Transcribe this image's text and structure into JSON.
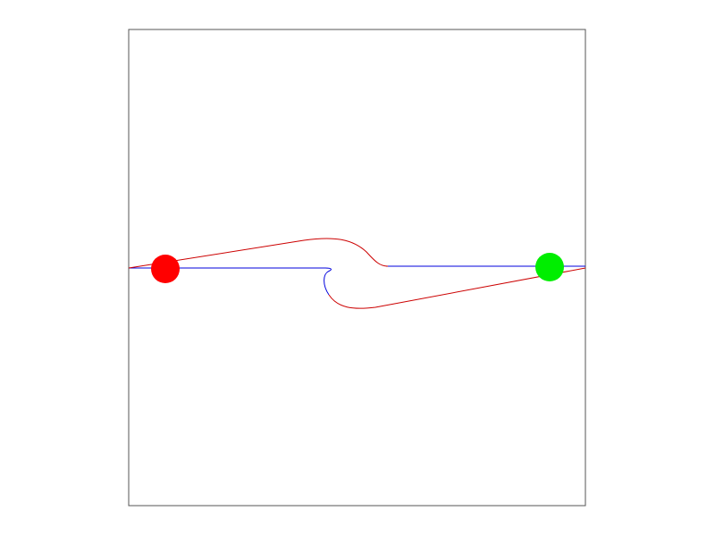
{
  "diagram": {
    "colors": {
      "frame": "#555555",
      "background": "#ffffff",
      "red_path": "#cc0000",
      "blue_path": "#0000dd",
      "start_marker": "#ff0000",
      "goal_marker": "#00ee00"
    },
    "markers": [
      {
        "name": "start-marker",
        "color_key": "start_marker"
      },
      {
        "name": "goal-marker",
        "color_key": "goal_marker"
      }
    ],
    "paths": [
      {
        "name": "red-path",
        "color_key": "red_path"
      },
      {
        "name": "blue-path",
        "color_key": "blue_path"
      }
    ]
  }
}
